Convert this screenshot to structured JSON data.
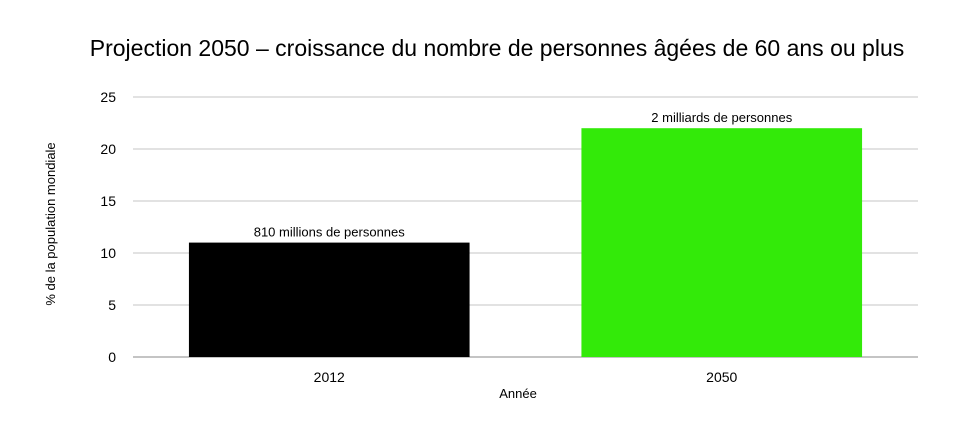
{
  "chart_data": {
    "type": "bar",
    "title": "Projection 2050 – croissance du nombre de personnes âgées de 60 ans ou plus",
    "xlabel": "Année",
    "ylabel": "% de la population mondiale",
    "categories": [
      "2012",
      "2050"
    ],
    "values": [
      11,
      22
    ],
    "data_labels": [
      "810 millions de personnes",
      "2 milliards de personnes"
    ],
    "colors": [
      "#000000",
      "#33ea09"
    ],
    "ylim": [
      0,
      25
    ],
    "yticks": [
      0,
      5,
      10,
      15,
      20,
      25
    ],
    "grid": true,
    "legend": "none"
  }
}
